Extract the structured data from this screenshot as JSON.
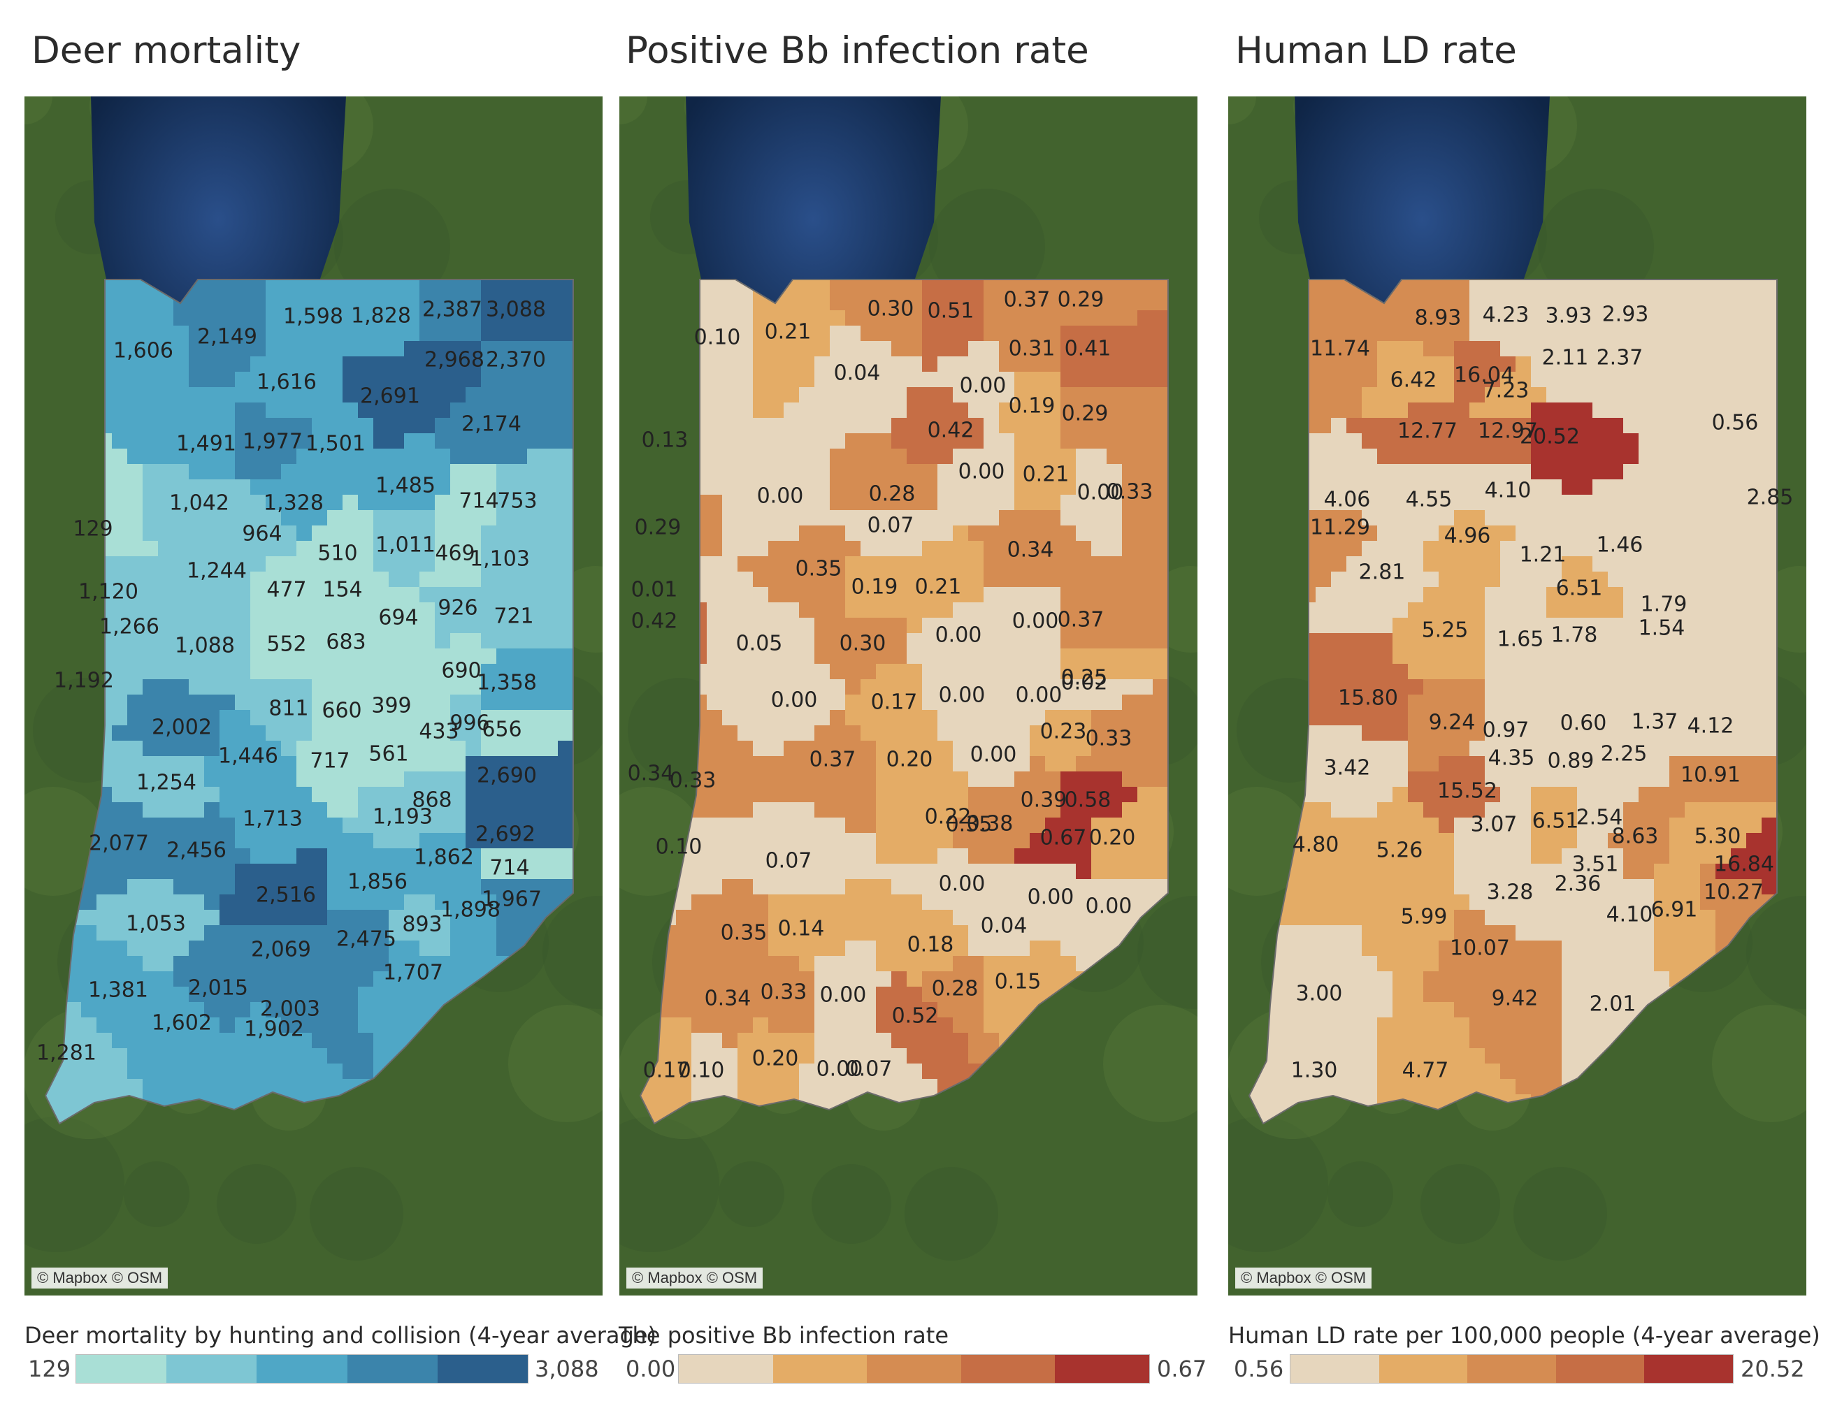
{
  "attribution": "© Mapbox © OSM",
  "panels": [
    {
      "title": "Deer mortality",
      "legend_title": "Deer mortality by hunting and collision (4-year average)",
      "legend_min": "129",
      "legend_max": "3,088",
      "scale_min": 129,
      "scale_max": 3088,
      "palette": [
        "#a9dfd6",
        "#7ec6d3",
        "#4fa7c6",
        "#3b84ab",
        "#2b5f8c"
      ],
      "labels": [
        "1,606",
        "2,149",
        "1,598",
        "1,828",
        "2,387",
        "3,088",
        "1,616",
        "2,968",
        "2,370",
        "2,691",
        "1,491",
        "1,977",
        "1,501",
        "2,174",
        "1,485",
        "1,042",
        "1,328",
        "714",
        "753",
        "129",
        "964",
        "1,011",
        "469",
        "1,103",
        "510",
        "1,244",
        "477",
        "154",
        "1,120",
        "1,266",
        "694",
        "926",
        "721",
        "1,088",
        "552",
        "683",
        "690",
        "1,192",
        "1,358",
        "811",
        "660",
        "399",
        "2,002",
        "996",
        "656",
        "433",
        "1,446",
        "717",
        "561",
        "1,254",
        "2,690",
        "868",
        "1,713",
        "1,193",
        "2,077",
        "2,456",
        "2,692",
        "1,862",
        "714",
        "2,516",
        "1,856",
        "1,967",
        "1,053",
        "893",
        "1,898",
        "2,069",
        "2,475",
        "1,707",
        "1,381",
        "2,015",
        "2,003",
        "1,602",
        "1,902",
        "1,281"
      ]
    },
    {
      "title": "Positive Bb infection rate",
      "legend_title": "The positive Bb infection rate",
      "legend_min": "0.00",
      "legend_max": "0.67",
      "scale_min": 0,
      "scale_max": 0.67,
      "palette": [
        "#e6d6bd",
        "#e4ac66",
        "#d58c52",
        "#c66e45",
        "#a8332e"
      ],
      "labels": [
        "0.10",
        "0.21",
        "0.30",
        "0.51",
        "0.37",
        "0.29",
        "0.31",
        "0.41",
        "0.04",
        "0.00",
        "0.19",
        "0.29",
        "0.13",
        "0.42",
        "0.00",
        "0.21",
        "0.00",
        "0.28",
        "0.00",
        "0.33",
        "0.07",
        "0.29",
        "0.34",
        "0.35",
        "0.19",
        "0.21",
        "0.01",
        "0.42",
        "0.05",
        "0.30",
        "0.00",
        "0.00",
        "0.37",
        "0.25",
        "0.02",
        "0.00",
        "0.17",
        "0.00",
        "0.00",
        "0.23",
        "0.33",
        "0.37",
        "0.20",
        "0.00",
        "0.34",
        "0.33",
        "0.39",
        "0.58",
        "0.22",
        "0.35",
        "0.38",
        "0.67",
        "0.20",
        "0.10",
        "0.07",
        "0.00",
        "0.00",
        "0.00",
        "0.04",
        "0.35",
        "0.14",
        "0.18",
        "0.15",
        "0.34",
        "0.33",
        "0.00",
        "0.28",
        "0.52",
        "0.17",
        "0.10",
        "0.20",
        "0.00",
        "0.07",
        "0.21"
      ]
    },
    {
      "title": "Human LD rate",
      "legend_title": "Human LD rate per 100,000 people (4-year average)",
      "legend_min": "0.56",
      "legend_max": "20.52",
      "scale_min": 0.56,
      "scale_max": 20.52,
      "palette": [
        "#e6d6bd",
        "#e4ac66",
        "#d58c52",
        "#c66e45",
        "#a8332e"
      ],
      "labels": [
        "8.93",
        "4.23",
        "3.93",
        "2.93",
        "11.74",
        "2.11",
        "2.37",
        "6.42",
        "16.04",
        "7.23",
        "12.77",
        "12.97",
        "20.52",
        "0.56",
        "4.06",
        "4.55",
        "4.10",
        "2.85",
        "11.29",
        "4.96",
        "1.21",
        "1.46",
        "2.81",
        "6.51",
        "5.25",
        "1.65",
        "1.78",
        "1.54",
        "1.79",
        "15.80",
        "9.24",
        "0.97",
        "0.60",
        "1.37",
        "4.12",
        "3.42",
        "4.35",
        "0.89",
        "2.25",
        "10.91",
        "15.52",
        "3.07",
        "6.51",
        "2.54",
        "4.80",
        "5.26",
        "8.63",
        "5.30",
        "3.51",
        "16.84",
        "3.28",
        "2.36",
        "10.27",
        "5.99",
        "4.10",
        "6.91",
        "10.07",
        "3.00",
        "9.42",
        "2.01",
        "1.30",
        "4.77"
      ]
    }
  ]
}
